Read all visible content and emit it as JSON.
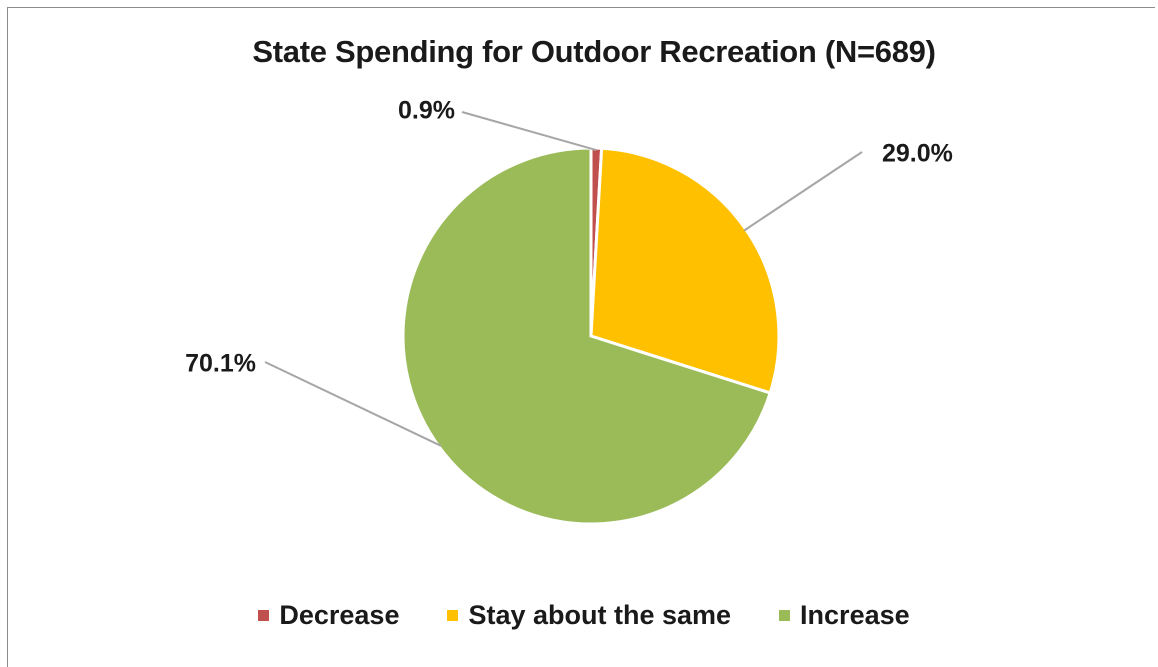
{
  "chart_data": {
    "type": "pie",
    "title": "State Spending for Outdoor Recreation (N=689)",
    "slices": [
      {
        "label": "Decrease",
        "value": 0.9,
        "display": "0.9%",
        "color": "#c0504d"
      },
      {
        "label": "Stay about the same",
        "value": 29.0,
        "display": "29.0%",
        "color": "#ffc000"
      },
      {
        "label": "Increase",
        "value": 70.1,
        "display": "70.1%",
        "color": "#9bbb59"
      }
    ],
    "legend_position": "bottom"
  }
}
